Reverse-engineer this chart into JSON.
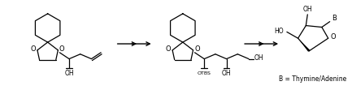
{
  "background_color": "#ffffff",
  "label_b": "B",
  "label_base": "B = Thymine/Adenine",
  "label_oh": "OH",
  "label_otbs": "OTBS",
  "label_ho": "HO",
  "lw": 0.9,
  "fs": 6.0
}
